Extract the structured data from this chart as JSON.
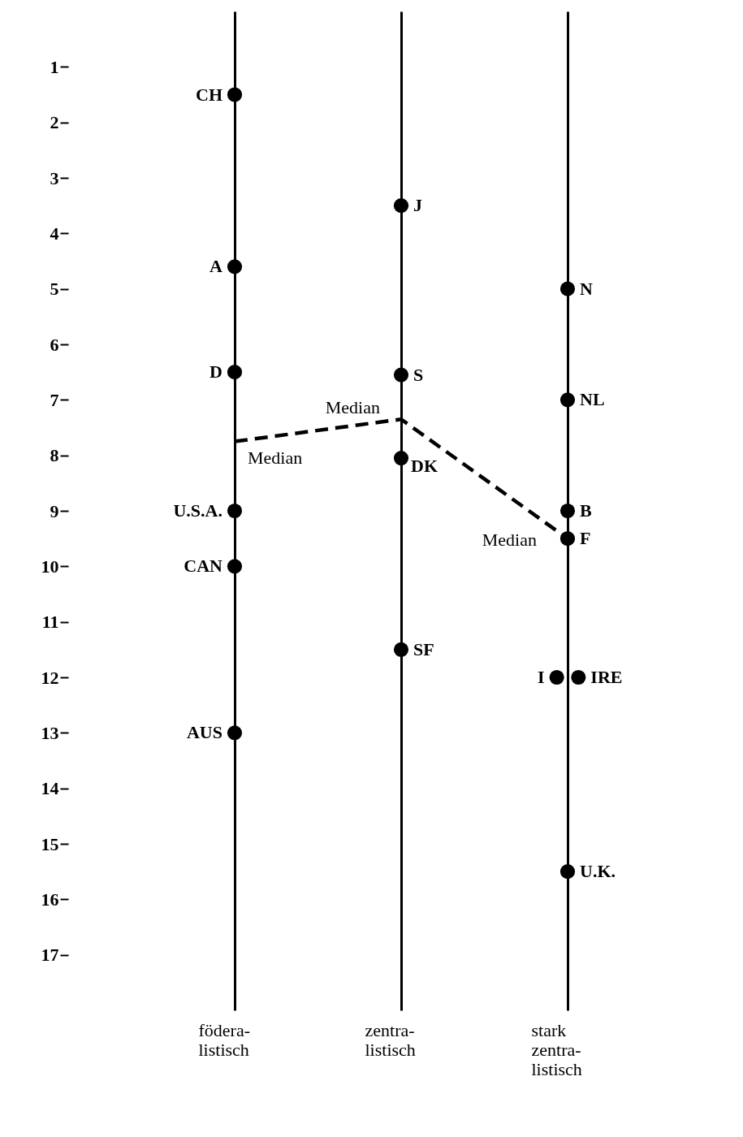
{
  "chart_data": {
    "type": "scatter",
    "categories": [
      "födera-\nlistisch",
      "zentra-\nlistisch",
      "stark\nzentra-\nlistisch"
    ],
    "ylim": [
      18,
      0
    ],
    "yticks": [
      1,
      2,
      3,
      4,
      5,
      6,
      7,
      8,
      9,
      10,
      11,
      12,
      13,
      14,
      15,
      16,
      17
    ],
    "grid": "x",
    "marker": "circle",
    "series": [
      {
        "color": "#000000",
        "x": [
          "födera-\nlistisch",
          "födera-\nlistisch",
          "födera-\nlistisch",
          "födera-\nlistisch",
          "födera-\nlistisch",
          "födera-\nlistisch",
          "zentra-\nlistisch",
          "zentra-\nlistisch",
          "zentra-\nlistisch",
          "zentra-\nlistisch",
          "stark\nzentra-\nlistisch",
          "stark\nzentra-\nlistisch",
          "stark\nzentra-\nlistisch",
          "stark\nzentra-\nlistisch",
          "stark\nzentra-\nlistisch",
          "stark\nzentra-\nlistisch",
          "stark\nzentra-\nlistisch"
        ],
        "values": [
          1.5,
          4.6,
          6.5,
          9,
          10,
          13,
          3.5,
          6.55,
          8.05,
          11.5,
          5,
          7,
          9,
          9.5,
          12,
          12,
          15.5
        ]
      },
      {
        "type": "line",
        "color": "#000000",
        "line_style": "dashed",
        "marker": "none",
        "x": [
          "födera-\nlistisch",
          "zentra-\nlistisch",
          "stark\nzentra-\nlistisch"
        ],
        "values": [
          7.75,
          7.35,
          9.5
        ]
      }
    ],
    "annotations": [
      {
        "text": "CH",
        "x": "födera-\nlistisch",
        "y": 1.5
      },
      {
        "text": "A",
        "x": "födera-\nlistisch",
        "y": 4.6
      },
      {
        "text": "D",
        "x": "födera-\nlistisch",
        "y": 6.5
      },
      {
        "text": "U.S.A.",
        "x": "födera-\nlistisch",
        "y": 9
      },
      {
        "text": "CAN",
        "x": "födera-\nlistisch",
        "y": 10
      },
      {
        "text": "AUS",
        "x": "födera-\nlistisch",
        "y": 13
      },
      {
        "text": "J",
        "x": "zentra-\nlistisch",
        "y": 3.5
      },
      {
        "text": "S",
        "x": "zentra-\nlistisch",
        "y": 6.55
      },
      {
        "text": "DK",
        "x": "zentra-\nlistisch",
        "y": 8.05
      },
      {
        "text": "SF",
        "x": "zentra-\nlistisch",
        "y": 11.5
      },
      {
        "text": "N",
        "x": "stark\nzentra-\nlistisch",
        "y": 5
      },
      {
        "text": "NL",
        "x": "stark\nzentra-\nlistisch",
        "y": 7
      },
      {
        "text": "B",
        "x": "stark\nzentra-\nlistisch",
        "y": 9
      },
      {
        "text": "F",
        "x": "stark\nzentra-\nlistisch",
        "y": 9.5
      },
      {
        "text": "I",
        "x": "stark\nzentra-\nlistisch",
        "y": 12
      },
      {
        "text": "IRE",
        "x": "stark\nzentra-\nlistisch",
        "y": 12
      },
      {
        "text": "U.K.",
        "x": "stark\nzentra-\nlistisch",
        "y": 15.5
      },
      "Median",
      {
        "text": "Median",
        "x": "zentra-\nlistisch",
        "y": 7.35
      },
      {
        "text": "Median",
        "x": "stark\nzentra-\nlistisch",
        "y": 9.5
      }
    ]
  }
}
